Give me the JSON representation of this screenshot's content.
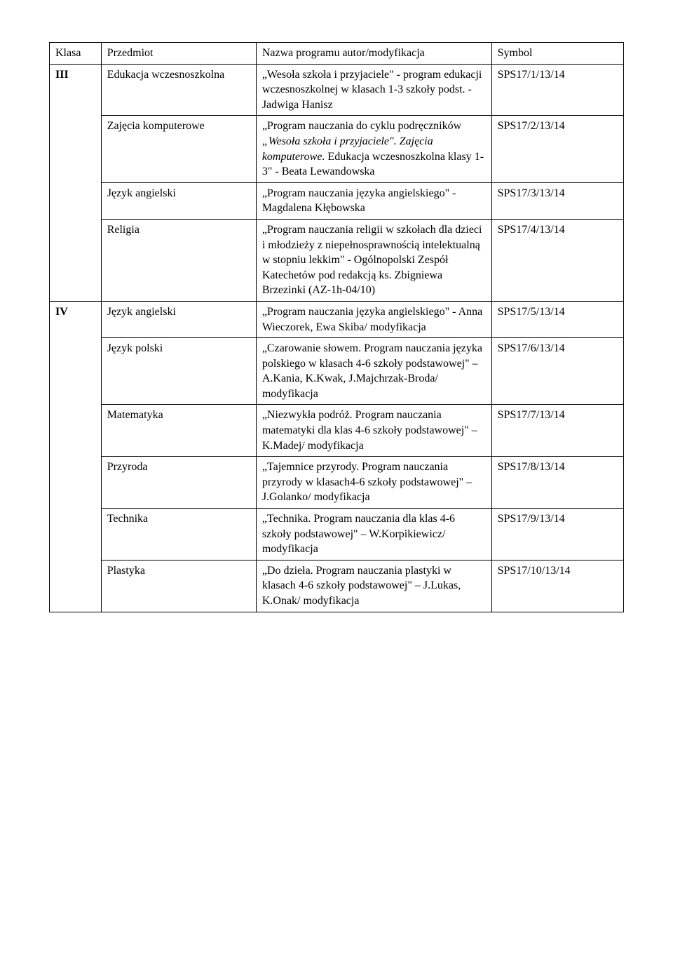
{
  "headers": {
    "klasa": "Klasa",
    "przedmiot": "Przedmiot",
    "program": "Nazwa programu autor/modyfikacja",
    "symbol": "Symbol"
  },
  "klasy": [
    {
      "klasa": "III",
      "rows": [
        {
          "przedmiot": "Edukacja wczesnoszkolna",
          "program_pre": "„Wesoła szkoła i przyjaciele\" - program edukacji wczesnoszkolnej w klasach 1-3 szkoły podst. - Jadwiga Hanisz",
          "program_italic": "",
          "program_post": "",
          "symbol": "SPS17/1/13/14"
        },
        {
          "przedmiot": "Zajęcia komputerowe",
          "program_pre": "„Program nauczania do cyklu podręczników ",
          "program_italic": "„Wesoła szkoła i przyjaciele\". Zajęcia komputerowe. ",
          "program_post": "Edukacja wczesnoszkolna klasy 1-3\" - Beata Lewandowska",
          "symbol": "SPS17/2/13/14"
        },
        {
          "przedmiot": "Język angielski",
          "program_pre": "„Program nauczania języka angielskiego\" - Magdalena Kłębowska",
          "program_italic": "",
          "program_post": "",
          "symbol": "SPS17/3/13/14"
        },
        {
          "przedmiot": "Religia",
          "program_pre": "„Program nauczania religii w szkołach dla dzieci i młodzieży z niepełnosprawnością intelektualną w stopniu lekkim\" - Ogólnopolski Zespół Katechetów pod redakcją ks. Zbigniewa Brzezinki (AZ-1h-04/10)",
          "program_italic": "",
          "program_post": "",
          "symbol": "SPS17/4/13/14"
        }
      ]
    },
    {
      "klasa": "IV",
      "rows": [
        {
          "przedmiot": "Język angielski",
          "program_pre": "„Program nauczania języka angielskiego\" - Anna Wieczorek, Ewa Skiba/ modyfikacja",
          "program_italic": "",
          "program_post": "",
          "symbol": "SPS17/5/13/14"
        },
        {
          "przedmiot": "Język polski",
          "program_pre": "„Czarowanie słowem. Program nauczania języka polskiego w klasach 4-6 szkoły podstawowej\" – A.Kania, K.Kwak, J.Majchrzak-Broda/ modyfikacja",
          "program_italic": "",
          "program_post": "",
          "symbol": "SPS17/6/13/14"
        },
        {
          "przedmiot": "Matematyka",
          "program_pre": "„Niezwykła podróż. Program nauczania matematyki dla klas 4-6 szkoły podstawowej\" – K.Madej/ modyfikacja",
          "program_italic": "",
          "program_post": "",
          "symbol": "SPS17/7/13/14"
        },
        {
          "przedmiot": "Przyroda",
          "program_pre": "„Tajemnice przyrody. Program nauczania przyrody w klasach4-6 szkoły podstawowej\" – J.Golanko/ modyfikacja",
          "program_italic": "",
          "program_post": "",
          "symbol": "SPS17/8/13/14"
        },
        {
          "przedmiot": "Technika",
          "program_pre": "„Technika. Program nauczania dla klas 4-6 szkoły podstawowej\" – W.Korpikiewicz/ modyfikacja",
          "program_italic": "",
          "program_post": "",
          "symbol": "SPS17/9/13/14"
        },
        {
          "przedmiot": "Plastyka",
          "program_pre": "„Do dzieła. Program nauczania plastyki w klasach 4-6 szkoły podstawowej\" – J.Lukas, K.Onak/ modyfikacja",
          "program_italic": "",
          "program_post": "",
          "symbol": "SPS17/10/13/14"
        }
      ]
    }
  ]
}
